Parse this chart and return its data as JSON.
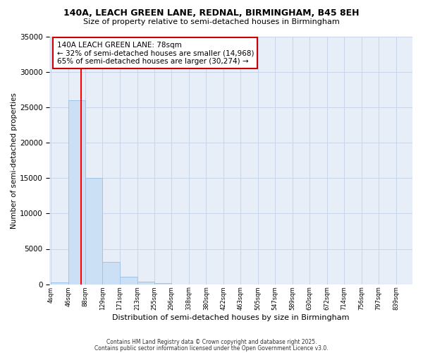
{
  "title": "140A, LEACH GREEN LANE, REDNAL, BIRMINGHAM, B45 8EH",
  "subtitle": "Size of property relative to semi-detached houses in Birmingham",
  "xlabel": "Distribution of semi-detached houses by size in Birmingham",
  "ylabel": "Number of semi-detached properties",
  "bins": [
    "4sqm",
    "46sqm",
    "88sqm",
    "129sqm",
    "171sqm",
    "213sqm",
    "255sqm",
    "296sqm",
    "338sqm",
    "380sqm",
    "422sqm",
    "463sqm",
    "505sqm",
    "547sqm",
    "589sqm",
    "630sqm",
    "672sqm",
    "714sqm",
    "756sqm",
    "797sqm",
    "839sqm"
  ],
  "bin_edges": [
    4,
    46,
    88,
    129,
    171,
    213,
    255,
    296,
    338,
    380,
    422,
    463,
    505,
    547,
    589,
    630,
    672,
    714,
    756,
    797,
    839
  ],
  "values": [
    300,
    26000,
    15000,
    3200,
    1100,
    400,
    200,
    0,
    0,
    0,
    0,
    0,
    0,
    0,
    0,
    0,
    0,
    0,
    0,
    0
  ],
  "bar_color": "#cce0f5",
  "bar_edge_color": "#a0c4e8",
  "red_line_x": 78,
  "annotation_line1": "140A LEACH GREEN LANE: 78sqm",
  "annotation_line2": "← 32% of semi-detached houses are smaller (14,968)",
  "annotation_line3": "65% of semi-detached houses are larger (30,274) →",
  "annotation_box_color": "#ffffff",
  "annotation_box_edge": "#cc0000",
  "ylim": [
    0,
    35000
  ],
  "yticks": [
    0,
    5000,
    10000,
    15000,
    20000,
    25000,
    30000,
    35000
  ],
  "footer1": "Contains HM Land Registry data © Crown copyright and database right 2025.",
  "footer2": "Contains public sector information licensed under the Open Government Licence v3.0.",
  "background_color": "#ffffff",
  "plot_bg_color": "#e8eef8",
  "grid_color": "#c8d4e8"
}
